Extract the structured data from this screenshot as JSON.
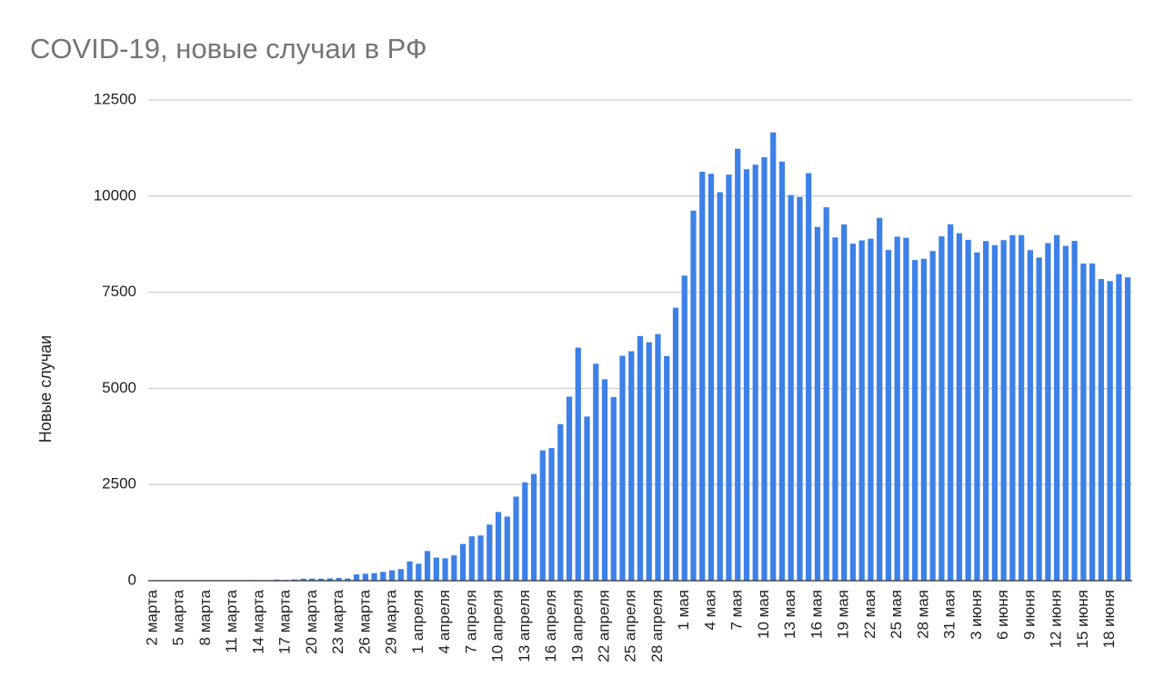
{
  "chart_data": {
    "type": "bar",
    "title": "COVID-19, новые случаи в РФ",
    "y_axis_label": "Новые случаи",
    "color": "#3d80e8",
    "grid": true,
    "ylim": [
      0,
      12500
    ],
    "yticks": [
      0,
      2500,
      5000,
      7500,
      10000,
      12500
    ],
    "categories": [
      "2 марта",
      null,
      null,
      "5 марта",
      null,
      null,
      "8 марта",
      null,
      null,
      "11 марта",
      null,
      null,
      "14 марта",
      null,
      null,
      "17 марта",
      null,
      null,
      "20 марта",
      null,
      null,
      "23 марта",
      null,
      null,
      "26 марта",
      null,
      null,
      "29 марта",
      null,
      null,
      "1 апреля",
      null,
      null,
      "4 апреля",
      null,
      null,
      "7 апреля",
      null,
      null,
      "10 апреля",
      null,
      null,
      "13 апреля",
      null,
      null,
      "16 апреля",
      null,
      null,
      "19 апреля",
      null,
      null,
      "22 апреля",
      null,
      null,
      "25 апреля",
      null,
      null,
      "28 апреля",
      null,
      null,
      "1 мая",
      null,
      null,
      "4 мая",
      null,
      null,
      "7 мая",
      null,
      null,
      "10 мая",
      null,
      null,
      "13 мая",
      null,
      null,
      "16 мая",
      null,
      null,
      "19 мая",
      null,
      null,
      "22 мая",
      null,
      null,
      "25 мая",
      null,
      null,
      "28 мая",
      null,
      null,
      "31 мая",
      null,
      null,
      "3 июня",
      null,
      null,
      "6 июня",
      null,
      null,
      "9 июня",
      null,
      null,
      "12 июня",
      null,
      null,
      "15 июня",
      null,
      null,
      "18 июня",
      null,
      null
    ],
    "values": [
      0,
      0,
      0,
      1,
      6,
      0,
      1,
      0,
      3,
      8,
      6,
      17,
      14,
      4,
      30,
      21,
      33,
      52,
      54,
      53,
      61,
      71,
      57,
      163,
      182,
      196,
      228,
      270,
      302,
      501,
      440,
      771,
      601,
      582,
      658,
      954,
      1154,
      1175,
      1459,
      1786,
      1667,
      2186,
      2558,
      2774,
      3388,
      3448,
      4070,
      4785,
      6060,
      4268,
      5642,
      5236,
      4774,
      5849,
      5966,
      6361,
      6198,
      6411,
      5841,
      7099,
      7933,
      9623,
      10633,
      10581,
      10102,
      10559,
      11231,
      10699,
      10817,
      11012,
      11656,
      10899,
      10028,
      9974,
      10598,
      9200,
      9709,
      8926,
      9263,
      8764,
      8849,
      8894,
      9434,
      8599,
      8946,
      8915,
      8338,
      8371,
      8572,
      8952,
      9268,
      9035,
      8863,
      8536,
      8831,
      8726,
      8855,
      8984,
      8985,
      8595,
      8404,
      8779,
      8987,
      8706,
      8835,
      8246,
      8248,
      7843,
      7790,
      7972,
      7889
    ]
  }
}
